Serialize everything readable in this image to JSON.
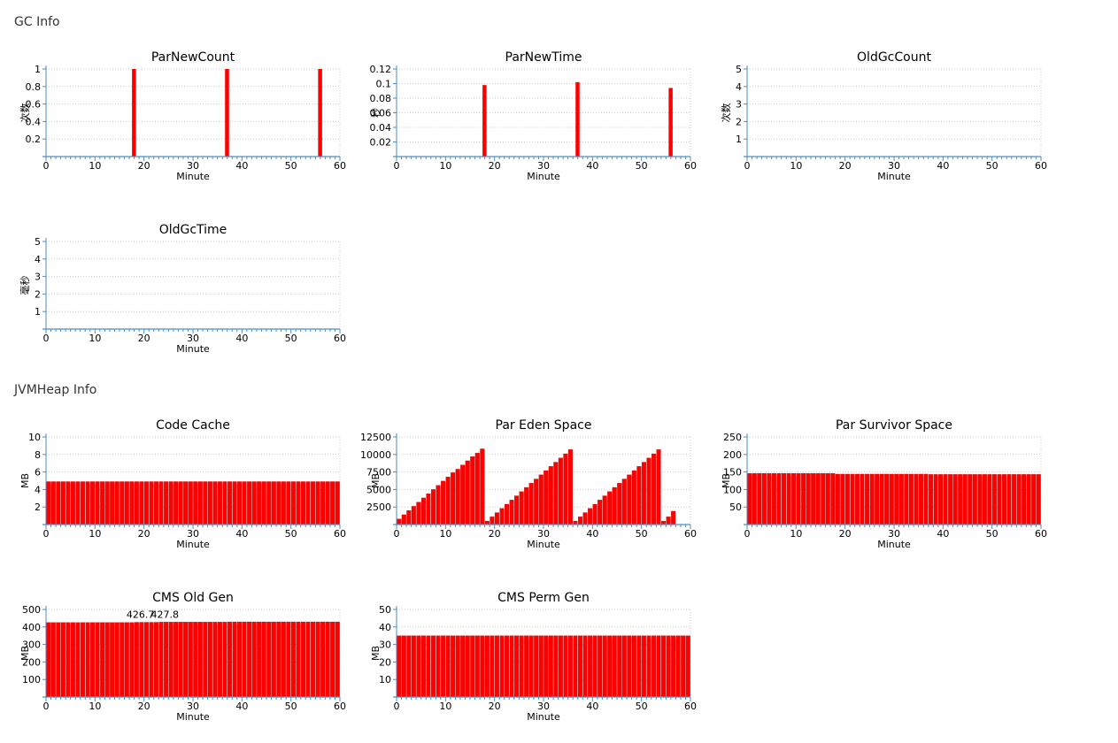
{
  "sections": {
    "gc": {
      "title": "GC Info"
    },
    "heap": {
      "title": "JVMHeap Info"
    }
  },
  "colors": {
    "bar": "#ff0000",
    "bar_edge": "#b80000",
    "axis": "#4a8ec8",
    "grid": "#cccccc",
    "text": "#000000"
  },
  "chart_data": [
    {
      "id": "parnewcount",
      "type": "bar",
      "title": "ParNewCount",
      "xlabel": "Minute",
      "ylabel": "次数",
      "xlim": [
        0,
        60
      ],
      "xticks": [
        0,
        10,
        20,
        30,
        40,
        50,
        60
      ],
      "ylim": [
        0,
        1
      ],
      "yticks": [
        0.2,
        0.4,
        0.6,
        0.8,
        1
      ],
      "ytick_labels": [
        "0.2",
        "0.4",
        "0.6",
        "0.8",
        "1"
      ],
      "grid": true,
      "annotations": [],
      "points": [
        [
          18,
          1
        ],
        [
          37,
          1
        ],
        [
          56,
          1
        ]
      ]
    },
    {
      "id": "parnewtime",
      "type": "bar",
      "title": "ParNewTime",
      "xlabel": "Minute",
      "ylabel": "秒",
      "xlim": [
        0,
        60
      ],
      "xticks": [
        0,
        10,
        20,
        30,
        40,
        50,
        60
      ],
      "ylim": [
        0,
        0.12
      ],
      "yticks": [
        0.02,
        0.04,
        0.06,
        0.08,
        0.1,
        0.12
      ],
      "ytick_labels": [
        "0.02",
        "0.04",
        "0.06",
        "0.08",
        "0.1",
        "0.12"
      ],
      "grid": true,
      "annotations": [],
      "points": [
        [
          18,
          0.098
        ],
        [
          37,
          0.102
        ],
        [
          56,
          0.094
        ]
      ]
    },
    {
      "id": "oldgccount",
      "type": "bar",
      "title": "OldGcCount",
      "xlabel": "Minute",
      "ylabel": "次数",
      "xlim": [
        0,
        60
      ],
      "xticks": [
        0,
        10,
        20,
        30,
        40,
        50,
        60
      ],
      "ylim": [
        0,
        5
      ],
      "yticks": [
        1,
        2,
        3,
        4,
        5
      ],
      "ytick_labels": [
        "1",
        "2",
        "3",
        "4",
        "5"
      ],
      "grid": true,
      "annotations": [],
      "points": []
    },
    {
      "id": "oldgctime",
      "type": "bar",
      "title": "OldGcTime",
      "xlabel": "Minute",
      "ylabel": "毫秒",
      "xlim": [
        0,
        60
      ],
      "xticks": [
        0,
        10,
        20,
        30,
        40,
        50,
        60
      ],
      "ylim": [
        0,
        5
      ],
      "yticks": [
        1,
        2,
        3,
        4,
        5
      ],
      "ytick_labels": [
        "1",
        "2",
        "3",
        "4",
        "5"
      ],
      "grid": true,
      "annotations": [],
      "points": []
    },
    {
      "id": "codecache",
      "type": "bar",
      "title": "Code Cache",
      "xlabel": "Minute",
      "ylabel": "MB",
      "xlim": [
        0,
        60
      ],
      "xticks": [
        0,
        10,
        20,
        30,
        40,
        50,
        60
      ],
      "ylim": [
        0,
        10
      ],
      "yticks": [
        2,
        4,
        6,
        8,
        10
      ],
      "ytick_labels": [
        "2",
        "4",
        "6",
        "8",
        "10"
      ],
      "grid": true,
      "annotations": [],
      "values": [
        4.9,
        4.9,
        4.9,
        4.9,
        4.9,
        4.9,
        4.9,
        4.9,
        4.9,
        4.9,
        4.9,
        4.9,
        4.9,
        4.9,
        4.9,
        4.9,
        4.9,
        4.9,
        4.9,
        4.9,
        4.9,
        4.9,
        4.9,
        4.9,
        4.9,
        4.9,
        4.9,
        4.9,
        4.9,
        4.9,
        4.9,
        4.9,
        4.9,
        4.9,
        4.9,
        4.9,
        4.9,
        4.9,
        4.9,
        4.9,
        4.9,
        4.9,
        4.9,
        4.9,
        4.9,
        4.9,
        4.9,
        4.9,
        4.9,
        4.9,
        4.9,
        4.9,
        4.9,
        4.9,
        4.9,
        4.9,
        4.9,
        4.9,
        4.9,
        4.9
      ]
    },
    {
      "id": "pareden",
      "type": "bar",
      "title": "Par Eden Space",
      "xlabel": "Minute",
      "ylabel": "MB",
      "xlim": [
        0,
        60
      ],
      "xticks": [
        0,
        10,
        20,
        30,
        40,
        50,
        60
      ],
      "ylim": [
        0,
        12500
      ],
      "yticks": [
        2500,
        5000,
        7500,
        10000,
        12500
      ],
      "ytick_labels": [
        "2500",
        "5000",
        "7500",
        "10000",
        "12500"
      ],
      "grid": true,
      "annotations": [],
      "values": [
        800,
        1400,
        2000,
        2600,
        3200,
        3800,
        4400,
        5000,
        5600,
        6200,
        6800,
        7400,
        7900,
        8500,
        9100,
        9700,
        10200,
        10800,
        500,
        1100,
        1700,
        2300,
        2900,
        3500,
        4100,
        4700,
        5300,
        5900,
        6500,
        7100,
        7700,
        8300,
        8900,
        9500,
        10100,
        10700,
        500,
        1100,
        1700,
        2300,
        2900,
        3500,
        4100,
        4700,
        5300,
        5900,
        6500,
        7100,
        7700,
        8300,
        8900,
        9500,
        10100,
        10700,
        500,
        1100,
        1900
      ]
    },
    {
      "id": "parsurvivor",
      "type": "bar",
      "title": "Par Survivor Space",
      "xlabel": "Minute",
      "ylabel": "MB",
      "xlim": [
        0,
        60
      ],
      "xticks": [
        0,
        10,
        20,
        30,
        40,
        50,
        60
      ],
      "ylim": [
        0,
        250
      ],
      "yticks": [
        50,
        100,
        150,
        200,
        250
      ],
      "ytick_labels": [
        "50",
        "100",
        "150",
        "200",
        "250"
      ],
      "grid": true,
      "annotations": [],
      "values": [
        146,
        146,
        146,
        146,
        146,
        146,
        146,
        146,
        146,
        146,
        146,
        146,
        146,
        146,
        146,
        146,
        146,
        146,
        144,
        144,
        144,
        144,
        144,
        144,
        144,
        144,
        144,
        144,
        144,
        144,
        144,
        144,
        144,
        144,
        144,
        144,
        144,
        143,
        143,
        143,
        143,
        143,
        143,
        143,
        143,
        143,
        143,
        143,
        143,
        143,
        143,
        143,
        143,
        143,
        143,
        143,
        143,
        143,
        143,
        143
      ]
    },
    {
      "id": "cmsold",
      "type": "bar",
      "title": "CMS Old Gen",
      "xlabel": "Minute",
      "ylabel": "MB",
      "xlim": [
        0,
        60
      ],
      "xticks": [
        0,
        10,
        20,
        30,
        40,
        50,
        60
      ],
      "ylim": [
        0,
        500
      ],
      "yticks": [
        100,
        200,
        300,
        400,
        500
      ],
      "ytick_labels": [
        "100",
        "200",
        "300",
        "400",
        "500"
      ],
      "grid": true,
      "annotations": [
        {
          "x": 18,
          "y": 426.7,
          "text": "426.7"
        },
        {
          "x": 23,
          "y": 427.8,
          "text": "427.8"
        }
      ],
      "values": [
        425.4,
        425.4,
        425.4,
        425.4,
        425.4,
        425.4,
        425.4,
        425.4,
        425.4,
        425.4,
        425.4,
        425.4,
        425.4,
        425.4,
        425.4,
        425.4,
        425.4,
        425.4,
        426.7,
        426.7,
        426.7,
        426.7,
        426.7,
        427.8,
        427.8,
        427.8,
        427.8,
        427.8,
        427.8,
        427.8,
        427.8,
        427.8,
        427.8,
        427.8,
        427.8,
        427.8,
        427.8,
        429,
        429,
        429,
        429,
        429,
        429,
        429,
        429,
        429,
        429,
        429,
        429,
        429,
        429,
        429,
        429,
        429,
        429,
        429,
        429,
        429,
        429,
        429
      ]
    },
    {
      "id": "cmsperm",
      "type": "bar",
      "title": "CMS Perm Gen",
      "xlabel": "Minute",
      "ylabel": "MB",
      "xlim": [
        0,
        60
      ],
      "xticks": [
        0,
        10,
        20,
        30,
        40,
        50,
        60
      ],
      "ylim": [
        0,
        50
      ],
      "yticks": [
        10,
        20,
        30,
        40,
        50
      ],
      "ytick_labels": [
        "10",
        "20",
        "30",
        "40",
        "50"
      ],
      "grid": true,
      "annotations": [],
      "values": [
        35,
        35,
        35,
        35,
        35,
        35,
        35,
        35,
        35,
        35,
        35,
        35,
        35,
        35,
        35,
        35,
        35,
        35,
        35,
        35,
        35,
        35,
        35,
        35,
        35,
        35,
        35,
        35,
        35,
        35,
        35,
        35,
        35,
        35,
        35,
        35,
        35,
        35,
        35,
        35,
        35,
        35,
        35,
        35,
        35,
        35,
        35,
        35,
        35,
        35,
        35,
        35,
        35,
        35,
        35,
        35,
        35,
        35,
        35,
        35
      ]
    }
  ]
}
